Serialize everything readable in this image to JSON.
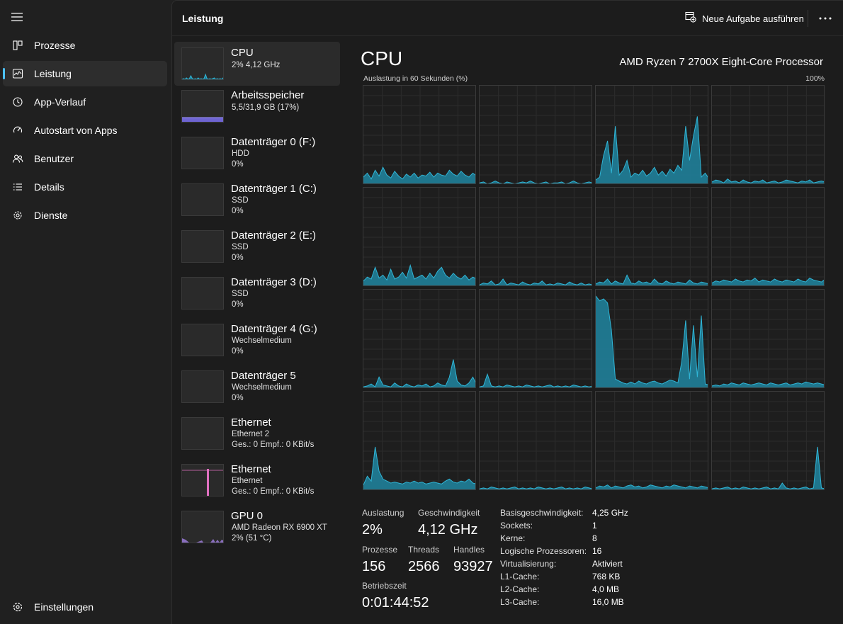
{
  "nav": {
    "items": [
      {
        "label": "Prozesse",
        "icon": "processes-icon"
      },
      {
        "label": "Leistung",
        "icon": "performance-icon",
        "active": true
      },
      {
        "label": "App-Verlauf",
        "icon": "history-icon"
      },
      {
        "label": "Autostart von Apps",
        "icon": "startup-icon"
      },
      {
        "label": "Benutzer",
        "icon": "users-icon"
      },
      {
        "label": "Details",
        "icon": "details-icon"
      },
      {
        "label": "Dienste",
        "icon": "services-icon"
      }
    ],
    "settings_label": "Einstellungen"
  },
  "header": {
    "title": "Leistung",
    "new_task_label": "Neue Aufgabe ausführen"
  },
  "devices": [
    {
      "name": "CPU",
      "lines": [
        "2%  4,12 GHz"
      ],
      "kind": "cpu",
      "active": true
    },
    {
      "name": "Arbeitsspeicher",
      "lines": [
        "5,5/31,9 GB (17%)"
      ],
      "kind": "mem"
    },
    {
      "name": "Datenträger 0 (F:)",
      "lines": [
        "HDD",
        "0%"
      ],
      "kind": "disk"
    },
    {
      "name": "Datenträger 1 (C:)",
      "lines": [
        "SSD",
        "0%"
      ],
      "kind": "disk"
    },
    {
      "name": "Datenträger 2 (E:)",
      "lines": [
        "SSD",
        "0%"
      ],
      "kind": "disk"
    },
    {
      "name": "Datenträger 3 (D:)",
      "lines": [
        "SSD",
        "0%"
      ],
      "kind": "disk"
    },
    {
      "name": "Datenträger 4 (G:)",
      "lines": [
        "Wechselmedium",
        "0%"
      ],
      "kind": "disk"
    },
    {
      "name": "Datenträger 5",
      "lines": [
        "Wechselmedium",
        "0%"
      ],
      "kind": "disk"
    },
    {
      "name": "Ethernet",
      "lines": [
        "Ethernet 2",
        "Ges.: 0 Empf.: 0 KBit/s"
      ],
      "kind": "eth"
    },
    {
      "name": "Ethernet",
      "lines": [
        "Ethernet",
        "Ges.: 0 Empf.: 0 KBit/s"
      ],
      "kind": "eth2"
    },
    {
      "name": "GPU 0",
      "lines": [
        "AMD Radeon RX 6900 XT",
        "2%  (51 °C)"
      ],
      "kind": "gpu"
    }
  ],
  "cpu": {
    "title": "CPU",
    "processor": "AMD Ryzen 7 2700X Eight-Core Processor",
    "graph_label": "Auslastung in 60 Sekunden (%)",
    "graph_max": "100%",
    "stats": {
      "util_label": "Auslastung",
      "util_value": "2%",
      "speed_label": "Geschwindigkeit",
      "speed_value": "4,12 GHz",
      "proc_label": "Prozesse",
      "proc_value": "156",
      "threads_label": "Threads",
      "threads_value": "2566",
      "handles_label": "Handles",
      "handles_value": "93927",
      "uptime_label": "Betriebszeit",
      "uptime_value": "0:01:44:52"
    },
    "specs": [
      {
        "k": "Basisgeschwindigkeit:",
        "v": "4,25 GHz"
      },
      {
        "k": "Sockets:",
        "v": "1"
      },
      {
        "k": "Kerne:",
        "v": "8"
      },
      {
        "k": "Logische Prozessoren:",
        "v": "16"
      },
      {
        "k": "Virtualisierung:",
        "v": "Aktiviert"
      },
      {
        "k": "L1-Cache:",
        "v": "768 KB"
      },
      {
        "k": "L2-Cache:",
        "v": "4,0 MB"
      },
      {
        "k": "L3-Cache:",
        "v": "16,0 MB"
      }
    ]
  },
  "colors": {
    "accent": "#4cc2ff",
    "cpu_fill": "#1f7f99",
    "cpu_line": "#30b5d6",
    "mem": "#7a6ff0",
    "eth": "#e070c0",
    "gpu": "#9a7ad8"
  },
  "chart_data": {
    "type": "area",
    "title": "CPU",
    "ylabel": "Auslastung in 60 Sekunden (%)",
    "ylim": [
      0,
      100
    ],
    "series": [
      {
        "values": [
          8,
          12,
          6,
          15,
          9,
          18,
          10,
          7,
          14,
          9,
          6,
          11,
          8,
          12,
          7,
          10,
          9,
          13,
          8,
          12,
          10,
          9,
          15,
          11,
          9,
          14,
          10,
          8,
          12,
          9
        ]
      },
      {
        "values": [
          2,
          3,
          1,
          2,
          4,
          2,
          1,
          3,
          2,
          1,
          2,
          3,
          2,
          4,
          2,
          1,
          2,
          3,
          1,
          2,
          2,
          3,
          1,
          2,
          4,
          2,
          1,
          2,
          3,
          2
        ]
      },
      {
        "values": [
          5,
          8,
          30,
          45,
          12,
          60,
          10,
          15,
          25,
          8,
          12,
          10,
          15,
          9,
          12,
          18,
          10,
          14,
          9,
          16,
          12,
          20,
          15,
          60,
          25,
          50,
          70,
          8,
          12,
          6
        ]
      },
      {
        "values": [
          3,
          5,
          4,
          2,
          6,
          3,
          4,
          2,
          5,
          3,
          2,
          4,
          3,
          5,
          2,
          3,
          4,
          2,
          3,
          5,
          4,
          3,
          2,
          4,
          3,
          5,
          2,
          3,
          4,
          3
        ]
      },
      {
        "values": [
          6,
          10,
          8,
          20,
          9,
          12,
          7,
          18,
          8,
          10,
          15,
          9,
          22,
          8,
          10,
          12,
          8,
          14,
          9,
          16,
          20,
          12,
          9,
          14,
          10,
          8,
          12,
          7,
          10,
          8
        ]
      },
      {
        "values": [
          2,
          4,
          3,
          6,
          2,
          3,
          8,
          2,
          4,
          3,
          2,
          5,
          3,
          2,
          4,
          3,
          6,
          2,
          3,
          2,
          4,
          3,
          2,
          5,
          3,
          2,
          4,
          2,
          3,
          2
        ]
      },
      {
        "values": [
          3,
          5,
          4,
          8,
          3,
          6,
          4,
          3,
          12,
          4,
          3,
          6,
          4,
          5,
          3,
          8,
          4,
          3,
          6,
          4,
          3,
          5,
          4,
          3,
          7,
          4,
          3,
          5,
          4,
          3
        ]
      },
      {
        "values": [
          4,
          6,
          5,
          7,
          6,
          5,
          8,
          6,
          5,
          7,
          6,
          9,
          5,
          7,
          6,
          5,
          8,
          6,
          5,
          7,
          6,
          5,
          8,
          6,
          5,
          9,
          7,
          6,
          5,
          8
        ]
      },
      {
        "values": [
          2,
          3,
          5,
          2,
          12,
          4,
          3,
          2,
          6,
          3,
          2,
          5,
          3,
          2,
          4,
          3,
          5,
          2,
          3,
          6,
          4,
          3,
          12,
          30,
          8,
          4,
          3,
          6,
          12,
          4
        ]
      },
      {
        "values": [
          2,
          3,
          15,
          3,
          2,
          3,
          2,
          4,
          3,
          2,
          3,
          2,
          4,
          3,
          2,
          3,
          2,
          3,
          4,
          2,
          3,
          2,
          3,
          2,
          4,
          3,
          2,
          3,
          2,
          3
        ]
      },
      {
        "values": [
          95,
          90,
          92,
          88,
          60,
          10,
          8,
          6,
          5,
          7,
          5,
          8,
          6,
          5,
          7,
          8,
          6,
          5,
          7,
          9,
          8,
          6,
          28,
          70,
          10,
          65,
          12,
          75,
          5,
          4
        ]
      },
      {
        "values": [
          3,
          4,
          3,
          5,
          4,
          6,
          5,
          4,
          6,
          5,
          4,
          5,
          6,
          5,
          4,
          6,
          5,
          4,
          5,
          6,
          4,
          5,
          6,
          5,
          7,
          6,
          5,
          6,
          5,
          4
        ]
      },
      {
        "values": [
          6,
          15,
          10,
          45,
          20,
          12,
          10,
          8,
          9,
          8,
          7,
          9,
          8,
          10,
          8,
          9,
          7,
          8,
          9,
          8,
          7,
          10,
          12,
          9,
          8,
          10,
          9,
          12,
          8,
          7
        ]
      },
      {
        "values": [
          2,
          3,
          2,
          4,
          3,
          2,
          3,
          2,
          3,
          4,
          2,
          3,
          2,
          3,
          2,
          4,
          3,
          2,
          3,
          2,
          3,
          4,
          2,
          3,
          2,
          3,
          2,
          4,
          3,
          2
        ]
      },
      {
        "values": [
          3,
          5,
          4,
          6,
          3,
          5,
          4,
          3,
          5,
          6,
          4,
          5,
          3,
          4,
          6,
          5,
          4,
          3,
          5,
          4,
          6,
          5,
          4,
          3,
          5,
          4,
          3,
          5,
          4,
          3
        ]
      },
      {
        "values": [
          2,
          3,
          2,
          3,
          4,
          2,
          3,
          2,
          4,
          3,
          2,
          3,
          2,
          3,
          4,
          2,
          3,
          2,
          8,
          3,
          2,
          3,
          2,
          3,
          4,
          2,
          3,
          45,
          3,
          2
        ]
      }
    ]
  }
}
